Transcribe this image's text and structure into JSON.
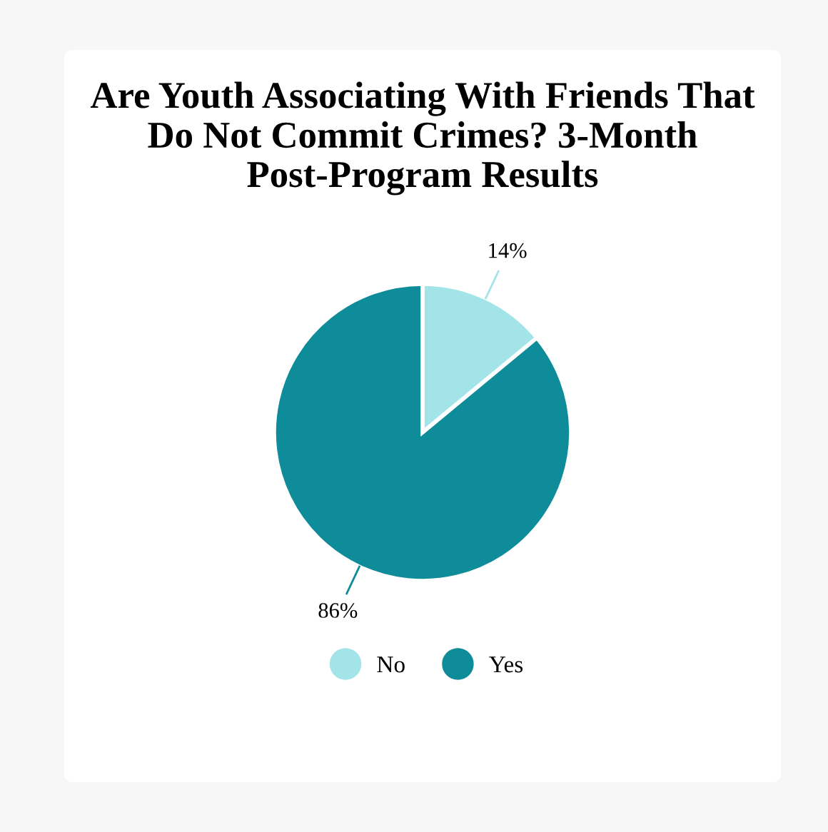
{
  "chart_data": {
    "type": "pie",
    "title": "Are Youth Associating With Friends That Do Not Commit Crimes? 3-Month Post-Program Results",
    "categories": [
      "No",
      "Yes"
    ],
    "values": [
      14,
      86
    ],
    "colors": [
      "#a3e4e9",
      "#0e8c99"
    ],
    "value_labels": [
      "14%",
      "86%"
    ],
    "legend": "bottom"
  }
}
